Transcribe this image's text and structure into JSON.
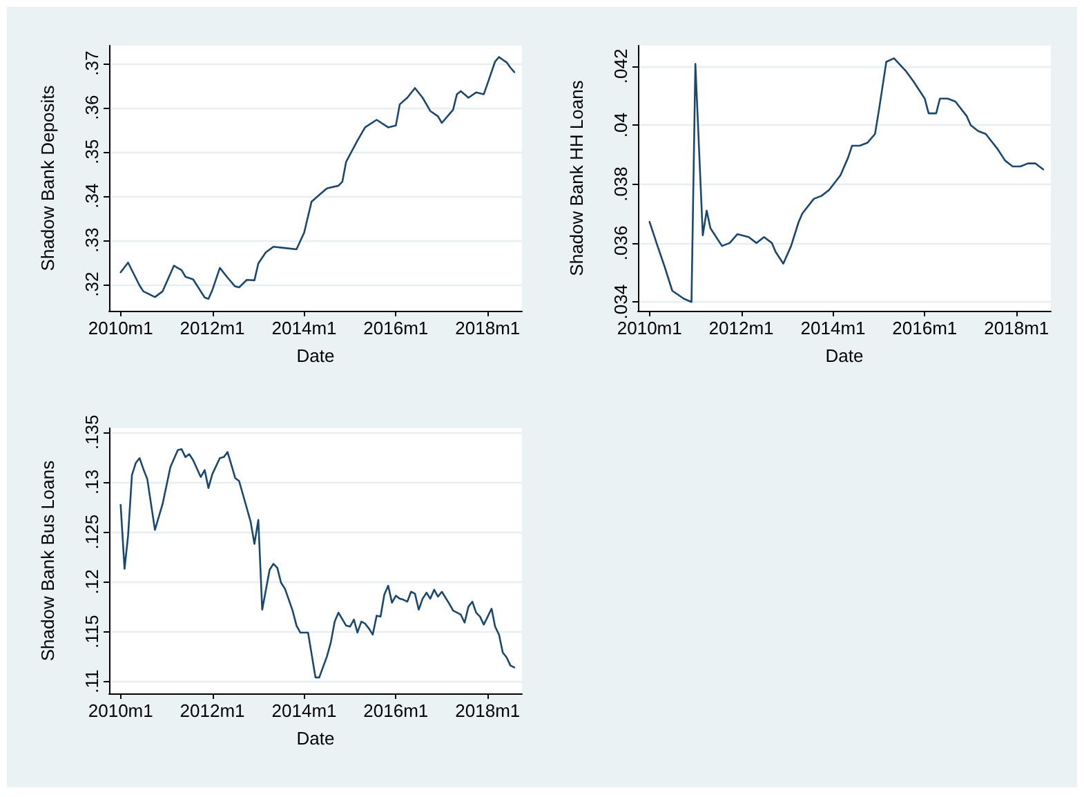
{
  "chart_data": [
    {
      "type": "line",
      "xlabel": "Date",
      "ylabel": "Shadow Bank Deposits",
      "grid": "y",
      "marker": "none",
      "line_style": "solid",
      "xlim": [
        "2009-10",
        "2018-10"
      ],
      "xticks": [
        {
          "value": "2010-01",
          "label": "2010m1"
        },
        {
          "value": "2012-01",
          "label": "2012m1"
        },
        {
          "value": "2014-01",
          "label": "2014m1"
        },
        {
          "value": "2016-01",
          "label": "2016m1"
        },
        {
          "value": "2018-01",
          "label": "2018m1"
        }
      ],
      "ylim": [
        0.314,
        0.374
      ],
      "yticks": [
        {
          "value": 0.32,
          "label": ".32"
        },
        {
          "value": 0.33,
          "label": ".33"
        },
        {
          "value": 0.34,
          "label": ".34"
        },
        {
          "value": 0.35,
          "label": ".35"
        },
        {
          "value": 0.36,
          "label": ".36"
        },
        {
          "value": 0.37,
          "label": ".37"
        }
      ],
      "series": [
        {
          "color": "#1a476f",
          "x": [
            "2010-01",
            "2010-03",
            "2010-06",
            "2010-07",
            "2010-10",
            "2010-12",
            "2011-03",
            "2011-05",
            "2011-06",
            "2011-08",
            "2011-11",
            "2011-12",
            "2012-01",
            "2012-03",
            "2012-05",
            "2012-07",
            "2012-08",
            "2012-10",
            "2012-12",
            "2013-01",
            "2013-03",
            "2013-05",
            "2013-08",
            "2013-11",
            "2014-01",
            "2014-03",
            "2014-05",
            "2014-07",
            "2014-10",
            "2014-11",
            "2014-12",
            "2015-03",
            "2015-05",
            "2015-08",
            "2015-11",
            "2016-01",
            "2016-02",
            "2016-04",
            "2016-06",
            "2016-08",
            "2016-10",
            "2016-12",
            "2017-01",
            "2017-04",
            "2017-05",
            "2017-06",
            "2017-08",
            "2017-10",
            "2017-12",
            "2018-01",
            "2018-03",
            "2018-04",
            "2018-05",
            "2018-06",
            "2018-07",
            "2018-08"
          ],
          "values": [
            0.3227,
            0.3249,
            0.3197,
            0.3184,
            0.3171,
            0.3184,
            0.3242,
            0.3232,
            0.3217,
            0.3211,
            0.317,
            0.3167,
            0.3187,
            0.3237,
            0.3215,
            0.3195,
            0.3193,
            0.321,
            0.3209,
            0.3247,
            0.3272,
            0.3285,
            0.3282,
            0.3279,
            0.3317,
            0.3387,
            0.3402,
            0.3417,
            0.3423,
            0.3432,
            0.3477,
            0.3525,
            0.3555,
            0.3572,
            0.3555,
            0.3559,
            0.3607,
            0.3622,
            0.3644,
            0.3622,
            0.3592,
            0.358,
            0.3565,
            0.3595,
            0.363,
            0.3637,
            0.3622,
            0.3634,
            0.363,
            0.3655,
            0.3704,
            0.3714,
            0.3708,
            0.3702,
            0.369,
            0.368
          ]
        }
      ]
    },
    {
      "type": "line",
      "xlabel": "Date",
      "ylabel": "Shadow Bank HH Loans",
      "grid": "y",
      "marker": "none",
      "line_style": "solid",
      "xlim": [
        "2009-10",
        "2018-10"
      ],
      "xticks": [
        {
          "value": "2010-01",
          "label": "2010m1"
        },
        {
          "value": "2012-01",
          "label": "2012m1"
        },
        {
          "value": "2014-01",
          "label": "2014m1"
        },
        {
          "value": "2016-01",
          "label": "2016m1"
        },
        {
          "value": "2018-01",
          "label": "2018m1"
        }
      ],
      "ylim": [
        0.0337,
        0.0427
      ],
      "yticks": [
        {
          "value": 0.034,
          "label": ".034"
        },
        {
          "value": 0.036,
          "label": ".036"
        },
        {
          "value": 0.038,
          "label": ".038"
        },
        {
          "value": 0.04,
          "label": ".04"
        },
        {
          "value": 0.042,
          "label": ".042"
        }
      ],
      "series": [
        {
          "color": "#1a476f",
          "x": [
            "2010-01",
            "2010-03",
            "2010-05",
            "2010-07",
            "2010-10",
            "2010-12",
            "2011-01",
            "2011-03",
            "2011-04",
            "2011-05",
            "2011-08",
            "2011-10",
            "2011-12",
            "2012-03",
            "2012-05",
            "2012-07",
            "2012-09",
            "2012-10",
            "2012-12",
            "2013-02",
            "2013-04",
            "2013-05",
            "2013-08",
            "2013-10",
            "2013-12",
            "2014-03",
            "2014-05",
            "2014-06",
            "2014-08",
            "2014-10",
            "2014-12",
            "2015-01",
            "2015-03",
            "2015-05",
            "2015-08",
            "2015-10",
            "2016-01",
            "2016-02",
            "2016-04",
            "2016-05",
            "2016-07",
            "2016-09",
            "2016-12",
            "2017-01",
            "2017-03",
            "2017-05",
            "2017-08",
            "2017-10",
            "2017-12",
            "2018-02",
            "2018-04",
            "2018-06",
            "2018-08"
          ],
          "values": [
            0.03672,
            0.03596,
            0.0352,
            0.03438,
            0.03411,
            0.034,
            0.04208,
            0.03626,
            0.0371,
            0.0365,
            0.0359,
            0.036,
            0.0363,
            0.0362,
            0.036,
            0.0362,
            0.036,
            0.0357,
            0.0353,
            0.0359,
            0.0367,
            0.037,
            0.0375,
            0.0376,
            0.0378,
            0.0383,
            0.0389,
            0.0393,
            0.0393,
            0.0394,
            0.0397,
            0.0405,
            0.04215,
            0.04227,
            0.04185,
            0.0415,
            0.0409,
            0.0404,
            0.0404,
            0.0409,
            0.0409,
            0.0408,
            0.0403,
            0.04,
            0.0398,
            0.0397,
            0.0392,
            0.0388,
            0.0386,
            0.0386,
            0.0387,
            0.0387,
            0.0385
          ]
        }
      ]
    },
    {
      "type": "line",
      "xlabel": "Date",
      "ylabel": "Shadow Bank Bus Loans",
      "grid": "y",
      "marker": "none",
      "line_style": "solid",
      "xlim": [
        "2009-10",
        "2018-10"
      ],
      "xticks": [
        {
          "value": "2010-01",
          "label": "2010m1"
        },
        {
          "value": "2012-01",
          "label": "2012m1"
        },
        {
          "value": "2014-01",
          "label": "2014m1"
        },
        {
          "value": "2016-01",
          "label": "2016m1"
        },
        {
          "value": "2018-01",
          "label": "2018m1"
        }
      ],
      "ylim": [
        0.1088,
        0.1354
      ],
      "yticks": [
        {
          "value": 0.11,
          "label": ".11"
        },
        {
          "value": 0.115,
          "label": ".115"
        },
        {
          "value": 0.12,
          "label": ".12"
        },
        {
          "value": 0.125,
          "label": ".125"
        },
        {
          "value": 0.13,
          "label": ".13"
        },
        {
          "value": 0.135,
          "label": ".135"
        }
      ],
      "series": [
        {
          "color": "#1a476f",
          "x": [
            "2010-01",
            "2010-02",
            "2010-03",
            "2010-04",
            "2010-05",
            "2010-06",
            "2010-07",
            "2010-08",
            "2010-10",
            "2010-12",
            "2011-02",
            "2011-04",
            "2011-05",
            "2011-06",
            "2011-07",
            "2011-08",
            "2011-10",
            "2011-11",
            "2011-12",
            "2012-01",
            "2012-03",
            "2012-04",
            "2012-05",
            "2012-06",
            "2012-07",
            "2012-08",
            "2012-10",
            "2012-11",
            "2012-12",
            "2013-01",
            "2013-02",
            "2013-04",
            "2013-05",
            "2013-06",
            "2013-07",
            "2013-08",
            "2013-10",
            "2013-11",
            "2013-12",
            "2014-02",
            "2014-04",
            "2014-05",
            "2014-07",
            "2014-08",
            "2014-09",
            "2014-10",
            "2014-12",
            "2015-01",
            "2015-02",
            "2015-03",
            "2015-04",
            "2015-05",
            "2015-06",
            "2015-07",
            "2015-08",
            "2015-09",
            "2015-10",
            "2015-11",
            "2015-12",
            "2016-01",
            "2016-02",
            "2016-03",
            "2016-04",
            "2016-05",
            "2016-06",
            "2016-07",
            "2016-08",
            "2016-09",
            "2016-10",
            "2016-11",
            "2016-12",
            "2017-01",
            "2017-03",
            "2017-04",
            "2017-06",
            "2017-07",
            "2017-08",
            "2017-09",
            "2017-10",
            "2017-11",
            "2017-12",
            "2018-01",
            "2018-02",
            "2018-03",
            "2018-04",
            "2018-05",
            "2018-06",
            "2018-07",
            "2018-08"
          ],
          "values": [
            0.1277,
            0.1213,
            0.1246,
            0.1307,
            0.1319,
            0.1324,
            0.1313,
            0.1303,
            0.1252,
            0.1278,
            0.1315,
            0.1332,
            0.1333,
            0.1325,
            0.1328,
            0.1322,
            0.1305,
            0.1312,
            0.1294,
            0.1308,
            0.1324,
            0.1325,
            0.133,
            0.1317,
            0.1304,
            0.1301,
            0.1274,
            0.126,
            0.1238,
            0.1262,
            0.1172,
            0.1212,
            0.1218,
            0.1214,
            0.1199,
            0.1193,
            0.1171,
            0.1156,
            0.1149,
            0.1149,
            0.1104,
            0.1104,
            0.1125,
            0.1139,
            0.116,
            0.1169,
            0.1156,
            0.1155,
            0.1162,
            0.1149,
            0.116,
            0.1158,
            0.1153,
            0.1147,
            0.1166,
            0.1165,
            0.1187,
            0.1196,
            0.1179,
            0.1186,
            0.1183,
            0.1182,
            0.118,
            0.119,
            0.1188,
            0.1172,
            0.1183,
            0.1189,
            0.1183,
            0.1192,
            0.1185,
            0.119,
            0.1178,
            0.1171,
            0.1167,
            0.1159,
            0.1175,
            0.118,
            0.1169,
            0.1165,
            0.1157,
            0.1165,
            0.1173,
            0.1155,
            0.1147,
            0.1129,
            0.1124,
            0.1116,
            0.1114
          ]
        }
      ]
    }
  ]
}
